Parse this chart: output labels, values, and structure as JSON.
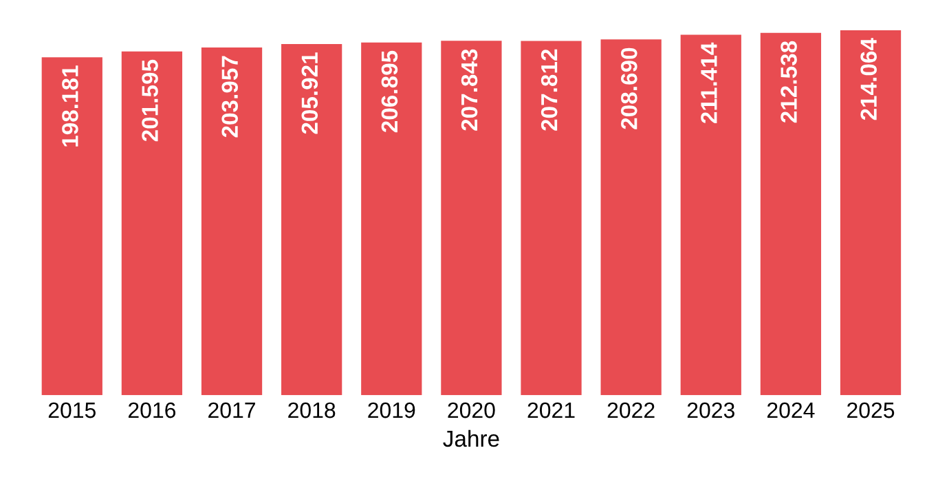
{
  "chart_data": {
    "type": "bar",
    "xlabel": "Jahre",
    "categories": [
      "2015",
      "2016",
      "2017",
      "2018",
      "2019",
      "2020",
      "2021",
      "2022",
      "2023",
      "2024",
      "2025"
    ],
    "values": [
      198181,
      201595,
      203957,
      205921,
      206895,
      207843,
      207812,
      208690,
      211414,
      212538,
      214064
    ],
    "value_labels": [
      "198.181",
      "201.595",
      "203.957",
      "205.921",
      "206.895",
      "207.843",
      "207.812",
      "208.690",
      "211.414",
      "212.538",
      "214.064"
    ],
    "color": "#e84c51",
    "tick_labels": "x",
    "grid": false,
    "legend": false
  }
}
